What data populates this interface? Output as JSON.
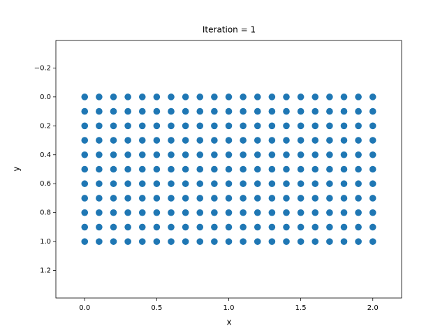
{
  "chart_data": {
    "type": "scatter",
    "title": "Iteration = 1",
    "x_label": "x",
    "y_label": "y",
    "color": "#1f77b4",
    "xlim": [
      -0.2,
      2.2
    ],
    "ylim": [
      1.39,
      -0.39
    ],
    "xticks": [
      {
        "value": 0,
        "label": "0.0"
      },
      {
        "value": 0.5,
        "label": "0.5"
      },
      {
        "value": 1,
        "label": "1.0"
      },
      {
        "value": 1.5,
        "label": "1.5"
      },
      {
        "value": 2,
        "label": "2.0"
      }
    ],
    "yticks": [
      {
        "value": -0.2,
        "label": "−0.2"
      },
      {
        "value": 0,
        "label": "0.0"
      },
      {
        "value": 0.2,
        "label": "0.2"
      },
      {
        "value": 0.4,
        "label": "0.4"
      },
      {
        "value": 0.6,
        "label": "0.6"
      },
      {
        "value": 0.8,
        "label": "0.8"
      },
      {
        "value": 1,
        "label": "1.0"
      },
      {
        "value": 1.2,
        "label": "1.2"
      }
    ],
    "x": [
      0,
      0.1,
      0.2,
      0.3,
      0.4,
      0.5,
      0.6,
      0.7,
      0.8,
      0.9,
      1,
      1.1,
      1.2,
      1.3,
      1.4,
      1.5,
      1.6,
      1.7,
      1.8,
      1.9,
      2,
      0,
      0.1,
      0.2,
      0.3,
      0.4,
      0.5,
      0.6,
      0.7,
      0.8,
      0.9,
      1,
      1.1,
      1.2,
      1.3,
      1.4,
      1.5,
      1.6,
      1.7,
      1.8,
      1.9,
      2,
      0,
      0.1,
      0.2,
      0.3,
      0.4,
      0.5,
      0.6,
      0.7,
      0.8,
      0.9,
      1,
      1.1,
      1.2,
      1.3,
      1.4,
      1.5,
      1.6,
      1.7,
      1.8,
      1.9,
      2,
      0,
      0.1,
      0.2,
      0.3,
      0.4,
      0.5,
      0.6,
      0.7,
      0.8,
      0.9,
      1,
      1.1,
      1.2,
      1.3,
      1.4,
      1.5,
      1.6,
      1.7,
      1.8,
      1.9,
      2,
      0,
      0.1,
      0.2,
      0.3,
      0.4,
      0.5,
      0.6,
      0.7,
      0.8,
      0.9,
      1,
      1.1,
      1.2,
      1.3,
      1.4,
      1.5,
      1.6,
      1.7,
      1.8,
      1.9,
      2,
      0,
      0.1,
      0.2,
      0.3,
      0.4,
      0.5,
      0.6,
      0.7,
      0.8,
      0.9,
      1,
      1.1,
      1.2,
      1.3,
      1.4,
      1.5,
      1.6,
      1.7,
      1.8,
      1.9,
      2,
      0,
      0.1,
      0.2,
      0.3,
      0.4,
      0.5,
      0.6,
      0.7,
      0.8,
      0.9,
      1,
      1.1,
      1.2,
      1.3,
      1.4,
      1.5,
      1.6,
      1.7,
      1.8,
      1.9,
      2,
      0,
      0.1,
      0.2,
      0.3,
      0.4,
      0.5,
      0.6,
      0.7,
      0.8,
      0.9,
      1,
      1.1,
      1.2,
      1.3,
      1.4,
      1.5,
      1.6,
      1.7,
      1.8,
      1.9,
      2,
      0,
      0.1,
      0.2,
      0.3,
      0.4,
      0.5,
      0.6,
      0.7,
      0.8,
      0.9,
      1,
      1.1,
      1.2,
      1.3,
      1.4,
      1.5,
      1.6,
      1.7,
      1.8,
      1.9,
      2,
      0,
      0.1,
      0.2,
      0.3,
      0.4,
      0.5,
      0.6,
      0.7,
      0.8,
      0.9,
      1,
      1.1,
      1.2,
      1.3,
      1.4,
      1.5,
      1.6,
      1.7,
      1.8,
      1.9,
      2,
      0,
      0.1,
      0.2,
      0.3,
      0.4,
      0.5,
      0.6,
      0.7,
      0.8,
      0.9,
      1,
      1.1,
      1.2,
      1.3,
      1.4,
      1.5,
      1.6,
      1.7,
      1.8,
      1.9,
      2
    ],
    "values": [
      0,
      0,
      0,
      0,
      0,
      0,
      0,
      0,
      0,
      0,
      0,
      0,
      0,
      0,
      0,
      0,
      0,
      0,
      0,
      0,
      0,
      0.1,
      0.1,
      0.1,
      0.1,
      0.1,
      0.1,
      0.1,
      0.1,
      0.1,
      0.1,
      0.1,
      0.1,
      0.1,
      0.1,
      0.1,
      0.1,
      0.1,
      0.1,
      0.1,
      0.1,
      0.1,
      0.2,
      0.2,
      0.2,
      0.2,
      0.2,
      0.2,
      0.2,
      0.2,
      0.2,
      0.2,
      0.2,
      0.2,
      0.2,
      0.2,
      0.2,
      0.2,
      0.2,
      0.2,
      0.2,
      0.2,
      0.2,
      0.3,
      0.3,
      0.3,
      0.3,
      0.3,
      0.3,
      0.3,
      0.3,
      0.3,
      0.3,
      0.3,
      0.3,
      0.3,
      0.3,
      0.3,
      0.3,
      0.3,
      0.3,
      0.3,
      0.3,
      0.3,
      0.4,
      0.4,
      0.4,
      0.4,
      0.4,
      0.4,
      0.4,
      0.4,
      0.4,
      0.4,
      0.4,
      0.4,
      0.4,
      0.4,
      0.4,
      0.4,
      0.4,
      0.4,
      0.4,
      0.4,
      0.4,
      0.5,
      0.5,
      0.5,
      0.5,
      0.5,
      0.5,
      0.5,
      0.5,
      0.5,
      0.5,
      0.5,
      0.5,
      0.5,
      0.5,
      0.5,
      0.5,
      0.5,
      0.5,
      0.5,
      0.5,
      0.5,
      0.6,
      0.6,
      0.6,
      0.6,
      0.6,
      0.6,
      0.6,
      0.6,
      0.6,
      0.6,
      0.6,
      0.6,
      0.6,
      0.6,
      0.6,
      0.6,
      0.6,
      0.6,
      0.6,
      0.6,
      0.6,
      0.7,
      0.7,
      0.7,
      0.7,
      0.7,
      0.7,
      0.7,
      0.7,
      0.7,
      0.7,
      0.7,
      0.7,
      0.7,
      0.7,
      0.7,
      0.7,
      0.7,
      0.7,
      0.7,
      0.7,
      0.7,
      0.8,
      0.8,
      0.8,
      0.8,
      0.8,
      0.8,
      0.8,
      0.8,
      0.8,
      0.8,
      0.8,
      0.8,
      0.8,
      0.8,
      0.8,
      0.8,
      0.8,
      0.8,
      0.8,
      0.8,
      0.8,
      0.9,
      0.9,
      0.9,
      0.9,
      0.9,
      0.9,
      0.9,
      0.9,
      0.9,
      0.9,
      0.9,
      0.9,
      0.9,
      0.9,
      0.9,
      0.9,
      0.9,
      0.9,
      0.9,
      0.9,
      0.9,
      1,
      1,
      1,
      1,
      1,
      1,
      1,
      1,
      1,
      1,
      1,
      1,
      1,
      1,
      1,
      1,
      1,
      1,
      1,
      1,
      1
    ]
  }
}
